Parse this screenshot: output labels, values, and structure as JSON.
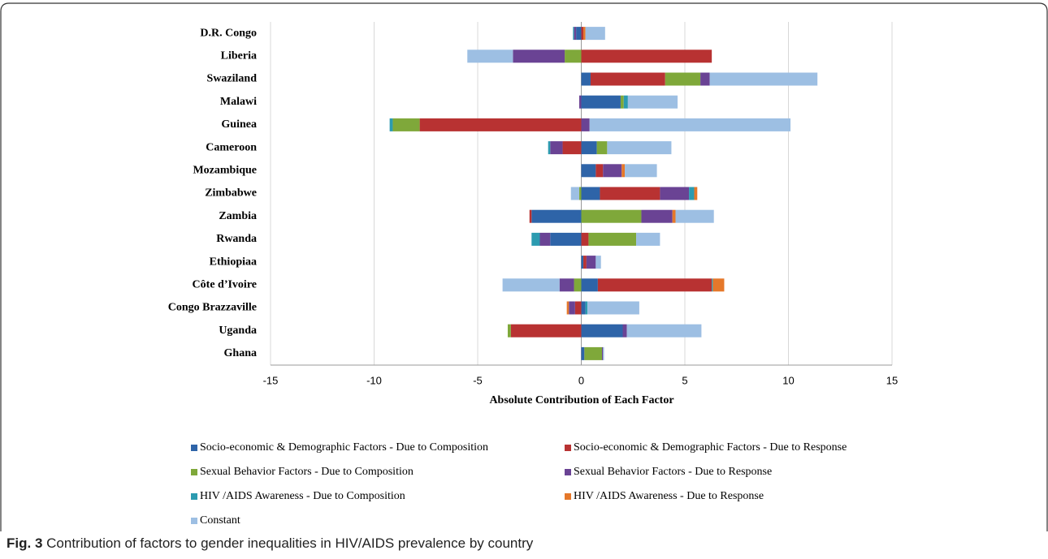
{
  "chart_data": {
    "type": "bar",
    "orientation": "horizontal",
    "stacked": true,
    "x_label": "Absolute Contribution of Each Factor",
    "categories": [
      "D.R. Congo",
      "Liberia",
      "Swaziland",
      "Malawi",
      "Guinea",
      "Cameroon",
      "Mozambique",
      "Zimbabwe",
      "Zambia",
      "Rwanda",
      "Ethiopiaa",
      "Côte d’Ivoire",
      "Congo Brazzaville",
      "Uganda",
      "Ghana"
    ],
    "series": [
      {
        "name": "Socio-economic & Demographic Factors - Due to Composition",
        "color": "#2e64a8",
        "values": [
          -0.25,
          0,
          0.45,
          1.9,
          0,
          0.75,
          0.7,
          0.9,
          -2.4,
          -1.5,
          0.1,
          0.8,
          0.2,
          2.0,
          0.15
        ]
      },
      {
        "name": "Socio-economic & Demographic Factors - Due to Response",
        "color": "#b83232",
        "values": [
          0.1,
          6.3,
          3.6,
          0,
          -7.8,
          -0.9,
          0.35,
          2.9,
          -0.1,
          0.35,
          0.15,
          5.5,
          -0.3,
          -3.4,
          0
        ]
      },
      {
        "name": "Sexual Behavior Factors - Due to Composition",
        "color": "#7fa83a",
        "values": [
          0,
          -0.8,
          1.7,
          0.15,
          -1.3,
          0.5,
          0,
          -0.1,
          2.9,
          2.3,
          0,
          -0.35,
          0,
          -0.15,
          0.85
        ]
      },
      {
        "name": "Sexual Behavior Factors - Due to Response",
        "color": "#6a4394",
        "values": [
          -0.1,
          -2.5,
          0.45,
          -0.1,
          0.4,
          -0.6,
          0.9,
          1.4,
          1.5,
          -0.5,
          0.45,
          -0.7,
          -0.3,
          0.2,
          0.05
        ]
      },
      {
        "name": "HIV /AIDS Awareness -  Due to Composition",
        "color": "#2c9bb0",
        "values": [
          -0.05,
          0,
          0,
          0.2,
          -0.15,
          -0.1,
          0,
          0.25,
          0,
          -0.4,
          0,
          0.05,
          0.1,
          0,
          0
        ]
      },
      {
        "name": "HIV /AIDS Awareness - Due to Response",
        "color": "#e5782a",
        "values": [
          0.1,
          0,
          0,
          0,
          0,
          0,
          0.15,
          0.15,
          0.15,
          0,
          0,
          0.55,
          -0.1,
          0,
          0
        ]
      },
      {
        "name": "Constant",
        "color": "#9dbfe3",
        "values": [
          0.95,
          -2.2,
          5.2,
          2.4,
          9.7,
          3.1,
          1.55,
          -0.4,
          1.85,
          1.15,
          0.25,
          -2.75,
          2.5,
          3.6,
          0.05
        ]
      }
    ],
    "xlim": [
      -15,
      15
    ],
    "xticks": [
      -15,
      -10,
      -5,
      0,
      5,
      10,
      15
    ],
    "grid": true
  },
  "caption": {
    "label": "Fig. 3",
    "text": "Contribution of factors to gender inequalities in HIV/AIDS prevalence by country"
  }
}
